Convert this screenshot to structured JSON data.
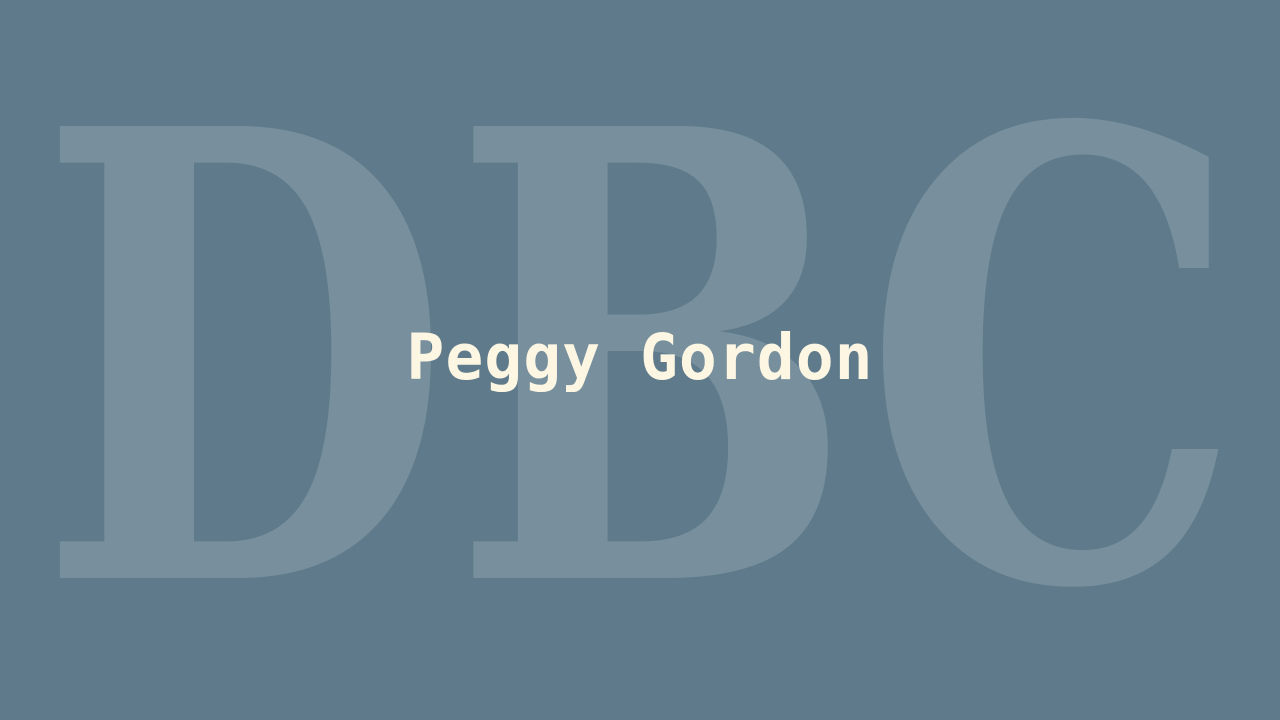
{
  "watermark": {
    "text": "DBC",
    "color": "#ffffff",
    "opacity": 0.16
  },
  "title": "Peggy Gordon",
  "colors": {
    "background": "#5f7b8b",
    "title": "#fdf6e3"
  }
}
